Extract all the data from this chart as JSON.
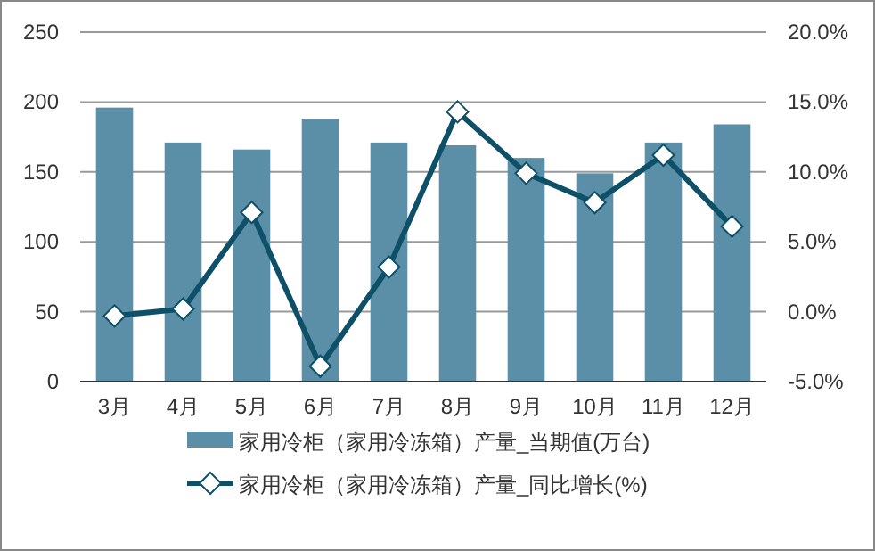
{
  "chart_data": {
    "type": "bar",
    "categories": [
      "3月",
      "4月",
      "5月",
      "6月",
      "7月",
      "8月",
      "9月",
      "10月",
      "11月",
      "12月"
    ],
    "series": [
      {
        "name": "家用冷柜（家用冷冻箱）产量_当期值(万台)",
        "color": "#5b8fa8",
        "values": [
          196,
          171,
          166,
          188,
          171,
          169,
          160,
          149,
          171,
          184
        ]
      },
      {
        "name": "家用冷柜（家用冷冻箱）产量_同比增长(%)",
        "type": "line",
        "axis": "y2",
        "color": "#0e5068",
        "marker": "diamond",
        "values": [
          -0.3,
          0.2,
          7.1,
          -3.9,
          3.2,
          14.3,
          9.9,
          7.8,
          11.2,
          6.1
        ]
      }
    ],
    "ylim": [
      0,
      250
    ],
    "yticks": [
      0,
      50,
      100,
      150,
      200,
      250
    ],
    "y2lim": [
      -5,
      20
    ],
    "y2ticks": [
      {
        "value": -5,
        "label": "-5.0%"
      },
      {
        "value": 0,
        "label": "0.0%"
      },
      {
        "value": 5,
        "label": "5.0%"
      },
      {
        "value": 10,
        "label": "10.0%"
      },
      {
        "value": 15,
        "label": "15.0%"
      },
      {
        "value": 20,
        "label": "20.0%"
      }
    ],
    "grid": "y",
    "legend": "bottom"
  }
}
